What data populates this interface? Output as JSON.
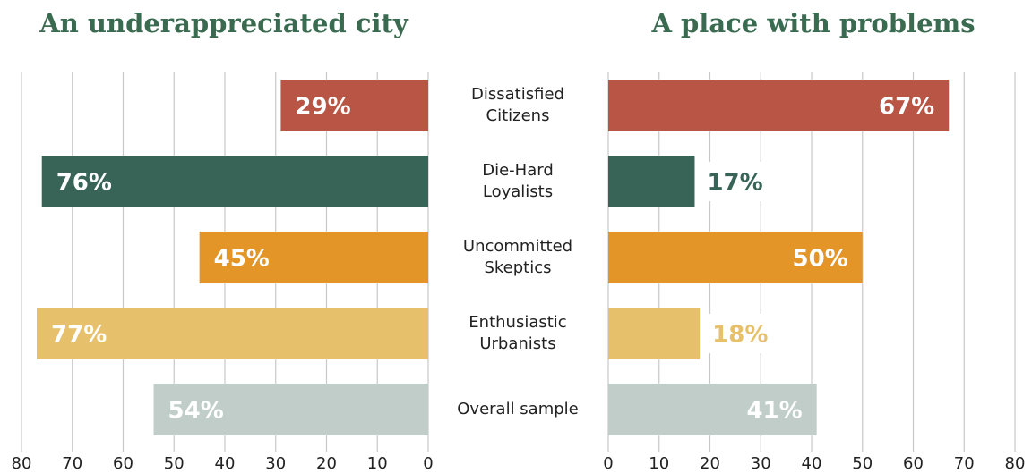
{
  "chart_data": [
    {
      "type": "bar",
      "orientation": "horizontal",
      "title": "An underappreciated city",
      "categories": [
        "Dissatisfied Citizens",
        "Die-Hard Loyalists",
        "Uncommitted Skeptics",
        "Enthusiastic Urbanists",
        "Overall sample"
      ],
      "values": [
        29,
        76,
        45,
        77,
        54
      ],
      "value_labels": [
        "29%",
        "76%",
        "45%",
        "77%",
        "54%"
      ],
      "colors": [
        "#b85545",
        "#386457",
        "#e39627",
        "#e6c06a",
        "#c0cdc9"
      ],
      "xlim": [
        80,
        0
      ],
      "xticks": [
        80,
        70,
        60,
        50,
        40,
        30,
        20,
        10,
        0
      ],
      "grid": true
    },
    {
      "type": "bar",
      "orientation": "horizontal",
      "title": "A place with problems",
      "values": [
        67,
        17,
        50,
        18,
        41
      ],
      "value_labels": [
        "67%",
        "17%",
        "50%",
        "18%",
        "41%"
      ],
      "colors": [
        "#b85545",
        "#386457",
        "#e39627",
        "#e6c06a",
        "#c0cdc9"
      ],
      "xlim": [
        0,
        80
      ],
      "xticks": [
        0,
        10,
        20,
        30,
        40,
        50,
        60,
        70,
        80
      ],
      "grid": true
    }
  ]
}
